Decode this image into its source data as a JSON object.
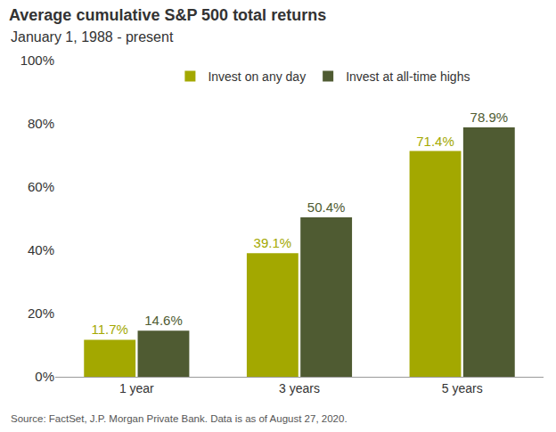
{
  "chart_data": {
    "type": "bar",
    "title": "Average cumulative S&P 500 total returns",
    "subtitle": "January 1, 1988 - present",
    "source": "Source: FactSet, J.P. Morgan Private Bank. Data is as of August 27, 2020.",
    "categories": [
      "1 year",
      "3 years",
      "5 years"
    ],
    "series": [
      {
        "name": "Invest on any day",
        "color": "#a3a800",
        "values": [
          11.7,
          39.1,
          71.4
        ],
        "value_labels": [
          "11.7%",
          "39.1%",
          "71.4%"
        ]
      },
      {
        "name": "Invest at all-time highs",
        "color": "#4f5b32",
        "values": [
          14.6,
          50.4,
          78.9
        ],
        "value_labels": [
          "14.6%",
          "50.4%",
          "78.9%"
        ]
      }
    ],
    "ylim": [
      0,
      100
    ],
    "yticks": [
      {
        "value": 0,
        "label": "0%"
      },
      {
        "value": 20,
        "label": "20%"
      },
      {
        "value": 40,
        "label": "40%"
      },
      {
        "value": 60,
        "label": "60%"
      },
      {
        "value": 80,
        "label": "80%"
      },
      {
        "value": 100,
        "label": "100%"
      }
    ],
    "grid": false,
    "legend": "top",
    "data_labels": true
  }
}
